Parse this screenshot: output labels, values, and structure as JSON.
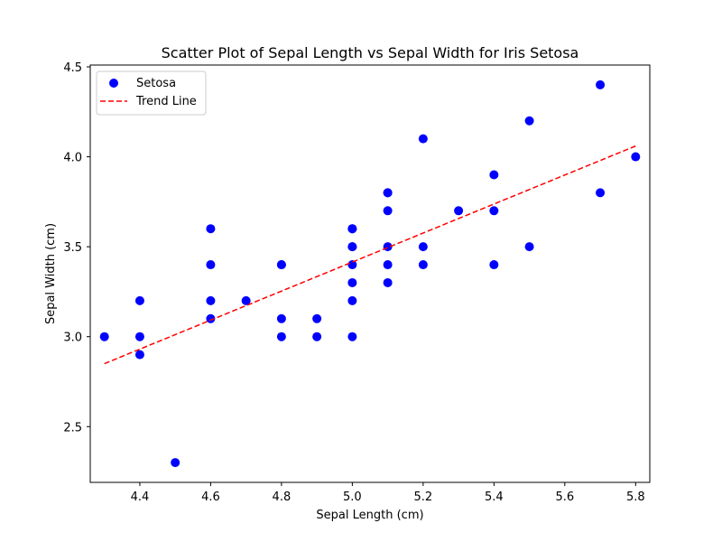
{
  "chart_data": {
    "type": "scatter",
    "title": "Scatter Plot of Sepal Length vs Sepal Width for Iris Setosa",
    "xlabel": "Sepal Length (cm)",
    "ylabel": "Sepal Width (cm)",
    "xlim": [
      4.26,
      5.84
    ],
    "ylim": [
      2.19,
      4.51
    ],
    "xticks": [
      "4.4",
      "4.6",
      "4.8",
      "5.0",
      "5.2",
      "5.4",
      "5.6",
      "5.8"
    ],
    "yticks": [
      "2.5",
      "3.0",
      "3.5",
      "4.0",
      "4.5"
    ],
    "grid": false,
    "legend": {
      "position": "upper-left",
      "entries": [
        "Setosa",
        "Trend Line"
      ]
    },
    "series": [
      {
        "name": "Setosa",
        "color": "#0000ff",
        "x": [
          4.3,
          4.4,
          4.4,
          4.4,
          4.5,
          4.6,
          4.6,
          4.6,
          4.6,
          4.7,
          4.8,
          4.8,
          4.8,
          4.8,
          4.9,
          4.9,
          5.0,
          5.0,
          5.0,
          5.0,
          5.0,
          5.0,
          5.0,
          5.0,
          5.1,
          5.1,
          5.1,
          5.1,
          5.1,
          5.1,
          5.2,
          5.2,
          5.2,
          5.3,
          5.4,
          5.4,
          5.4,
          5.5,
          5.5,
          5.7,
          5.7,
          5.8
        ],
        "y": [
          3.0,
          2.9,
          3.0,
          3.2,
          2.3,
          3.1,
          3.2,
          3.4,
          3.6,
          3.2,
          3.0,
          3.1,
          3.4,
          3.4,
          3.0,
          3.1,
          3.0,
          3.2,
          3.3,
          3.4,
          3.5,
          3.5,
          3.6,
          3.6,
          3.3,
          3.4,
          3.5,
          3.7,
          3.8,
          3.8,
          3.4,
          3.5,
          4.1,
          3.7,
          3.4,
          3.7,
          3.9,
          3.5,
          4.2,
          3.8,
          4.4,
          4.0
        ]
      },
      {
        "name": "Trend Line",
        "type": "line",
        "style": "dashed",
        "color": "#ff0000",
        "x": [
          4.3,
          5.8
        ],
        "y": [
          2.85,
          4.06
        ]
      }
    ]
  }
}
